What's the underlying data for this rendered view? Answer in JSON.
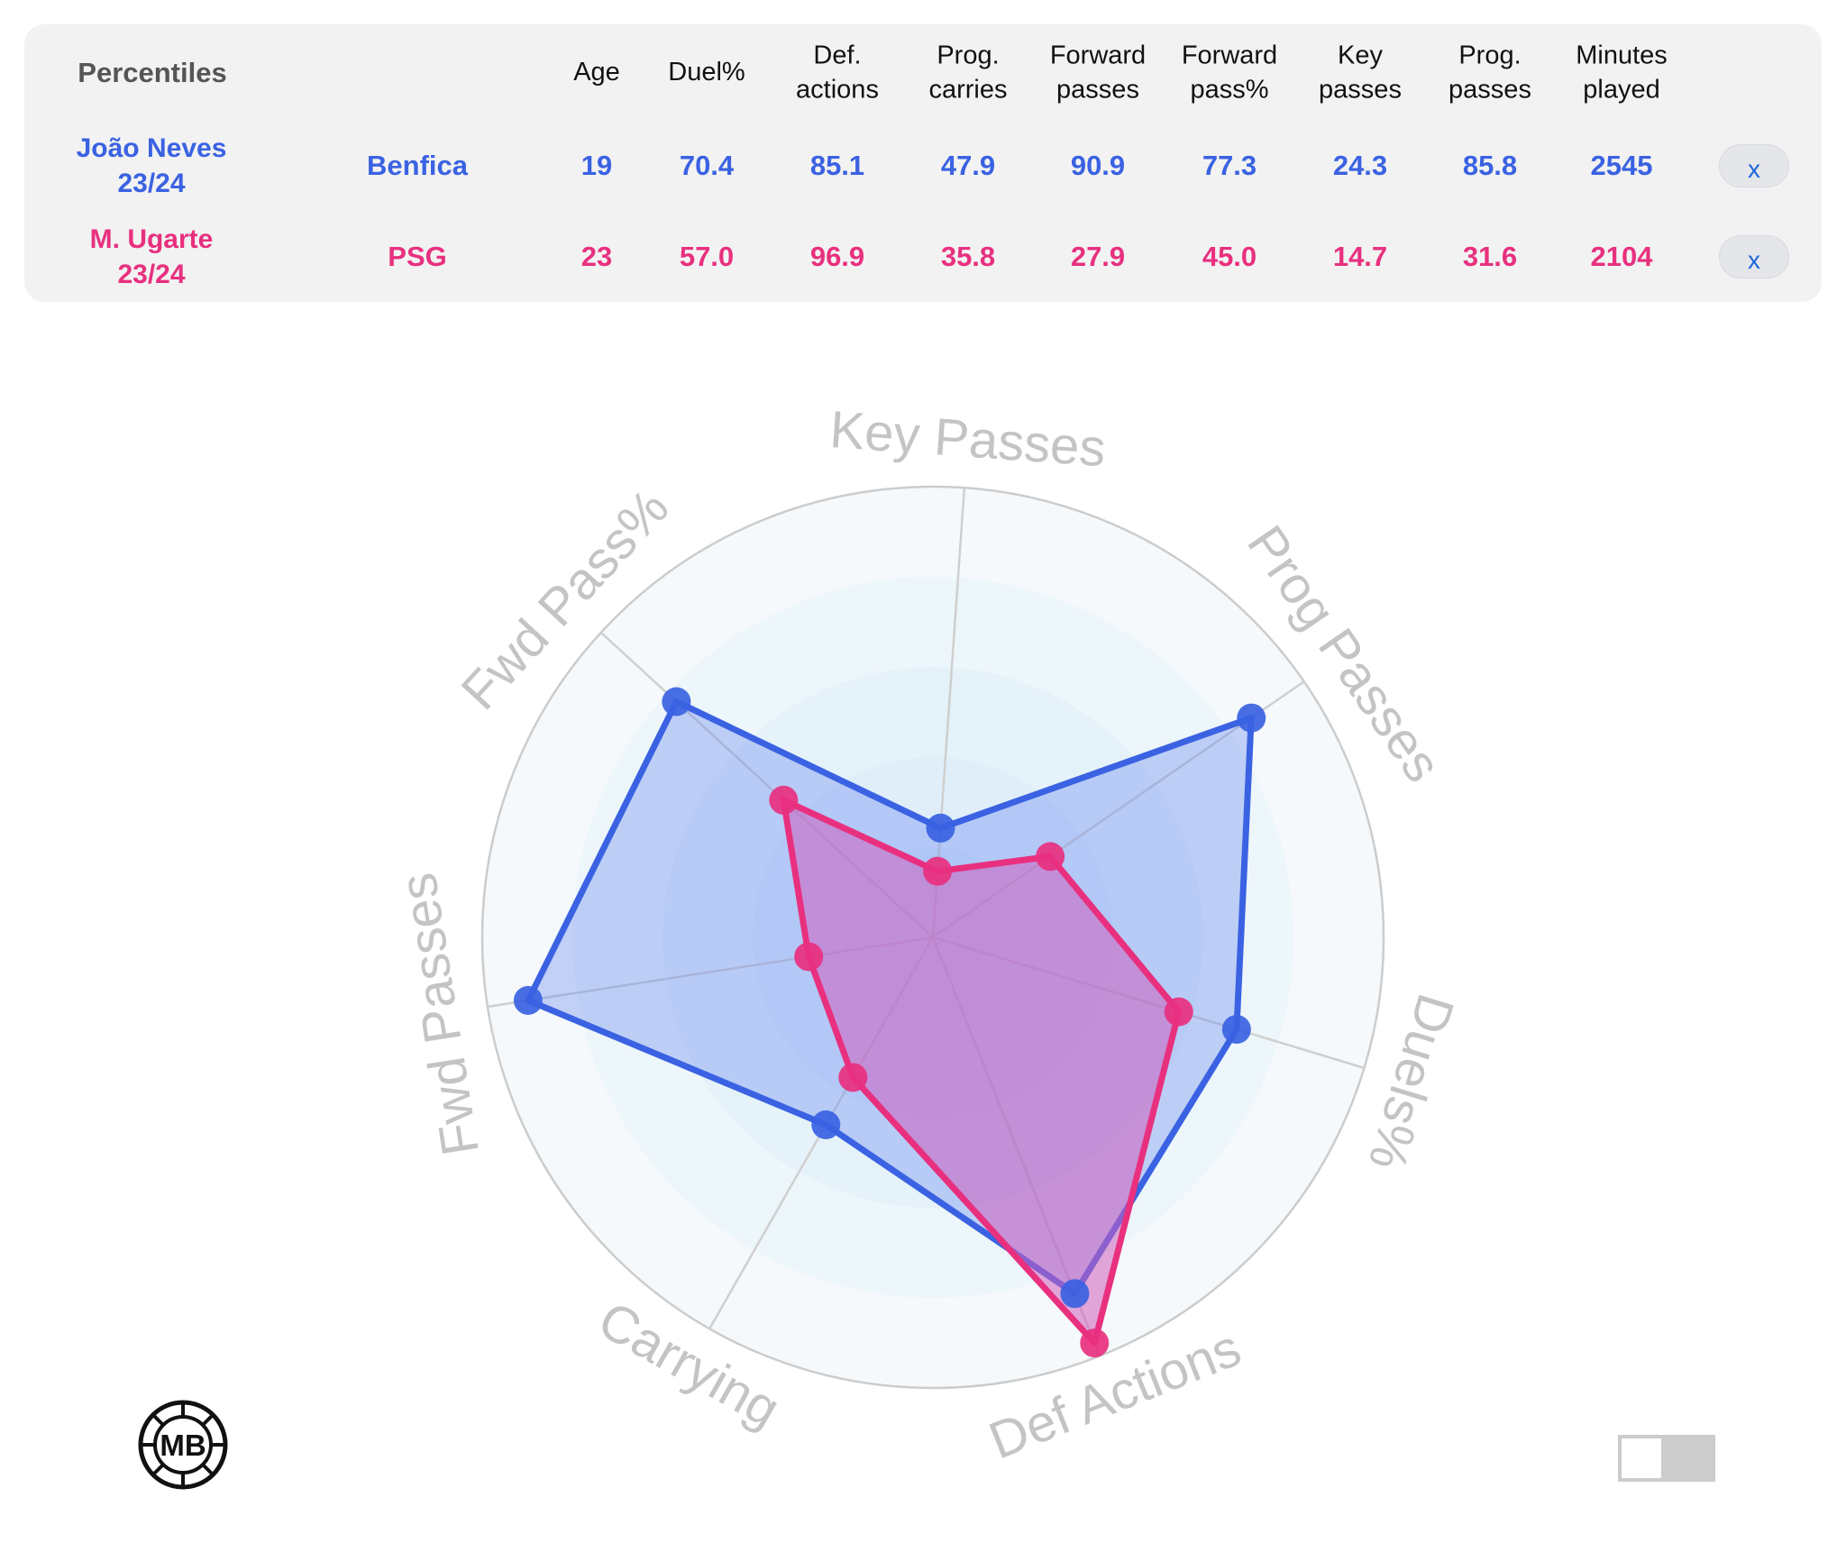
{
  "table": {
    "corner_label": "Percentiles",
    "headers": [
      {
        "line1": "Age",
        "line2": ""
      },
      {
        "line1": "Duel%",
        "line2": ""
      },
      {
        "line1": "Def.",
        "line2": "actions"
      },
      {
        "line1": "Prog.",
        "line2": "carries"
      },
      {
        "line1": "Forward",
        "line2": "passes"
      },
      {
        "line1": "Forward",
        "line2": "pass%"
      },
      {
        "line1": "Key",
        "line2": "passes"
      },
      {
        "line1": "Prog.",
        "line2": "passes"
      },
      {
        "line1": "Minutes",
        "line2": "played"
      }
    ],
    "rows": [
      {
        "name": "João Neves",
        "season": "23/24",
        "team": "Benfica",
        "values": [
          "19",
          "70.4",
          "85.1",
          "47.9",
          "90.9",
          "77.3",
          "24.3",
          "85.8",
          "2545"
        ],
        "remove_label": "x",
        "color": "#3a62e2"
      },
      {
        "name": "M. Ugarte",
        "season": "23/24",
        "team": "PSG",
        "values": [
          "23",
          "57.0",
          "96.9",
          "35.8",
          "27.9",
          "45.0",
          "14.7",
          "31.6",
          "2104"
        ],
        "remove_label": "x",
        "color": "#e8307f"
      }
    ]
  },
  "chart_data": {
    "type": "radar",
    "axes": [
      "Key Passes",
      "Prog Passes",
      "Duels%",
      "Def Actions",
      "Carrying",
      "Fwd Passes",
      "Fwd Pass%"
    ],
    "range": [
      0,
      100
    ],
    "rings": 5,
    "series": [
      {
        "name": "João Neves",
        "color": "#3a62e2",
        "values": [
          24.3,
          85.8,
          70.4,
          85.1,
          47.9,
          90.9,
          77.3
        ]
      },
      {
        "name": "M. Ugarte",
        "color": "#e8307f",
        "values": [
          14.7,
          31.6,
          57.0,
          96.9,
          35.8,
          27.9,
          45.0
        ]
      }
    ]
  },
  "logo": {
    "text": "MB"
  }
}
